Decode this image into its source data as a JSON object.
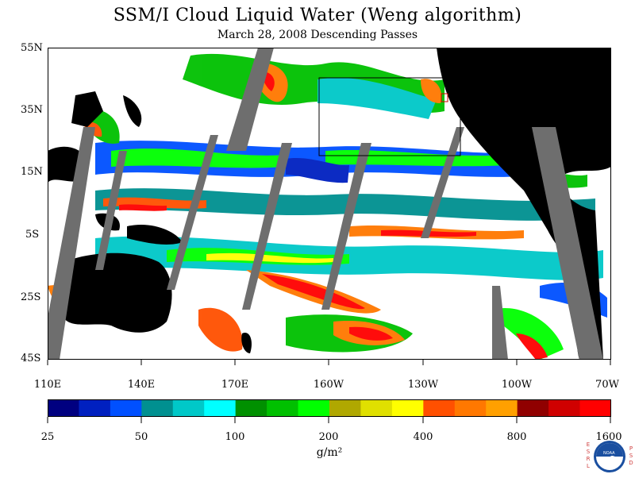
{
  "title": "SSM/I Cloud Liquid Water (Weng algorithm)",
  "subtitle": "March 28, 2008  Descending Passes",
  "map": {
    "lat_labels": [
      "55N",
      "35N",
      "15N",
      "5S",
      "25S",
      "45S"
    ],
    "lon_labels": [
      "110E",
      "140E",
      "170E",
      "160W",
      "130W",
      "100W",
      "70W"
    ],
    "land_color": "#000000",
    "no_data_color": "#6e6e6e",
    "background_color": "#ffffff"
  },
  "colorbar": {
    "colors": [
      "#000080",
      "#0020c0",
      "#0050ff",
      "#009090",
      "#00c8c8",
      "#00ffff",
      "#009000",
      "#00c000",
      "#00ff00",
      "#b0a800",
      "#e0e000",
      "#ffff00",
      "#ff5000",
      "#ff7800",
      "#ffa000",
      "#900000",
      "#d00000",
      "#ff0000"
    ],
    "labels": [
      "25",
      "50",
      "100",
      "200",
      "400",
      "800",
      "1600"
    ],
    "unit": "g/m²"
  },
  "logo": {
    "left_text": "ESRL",
    "right_text": "PSD",
    "center_text": "NOAA"
  }
}
